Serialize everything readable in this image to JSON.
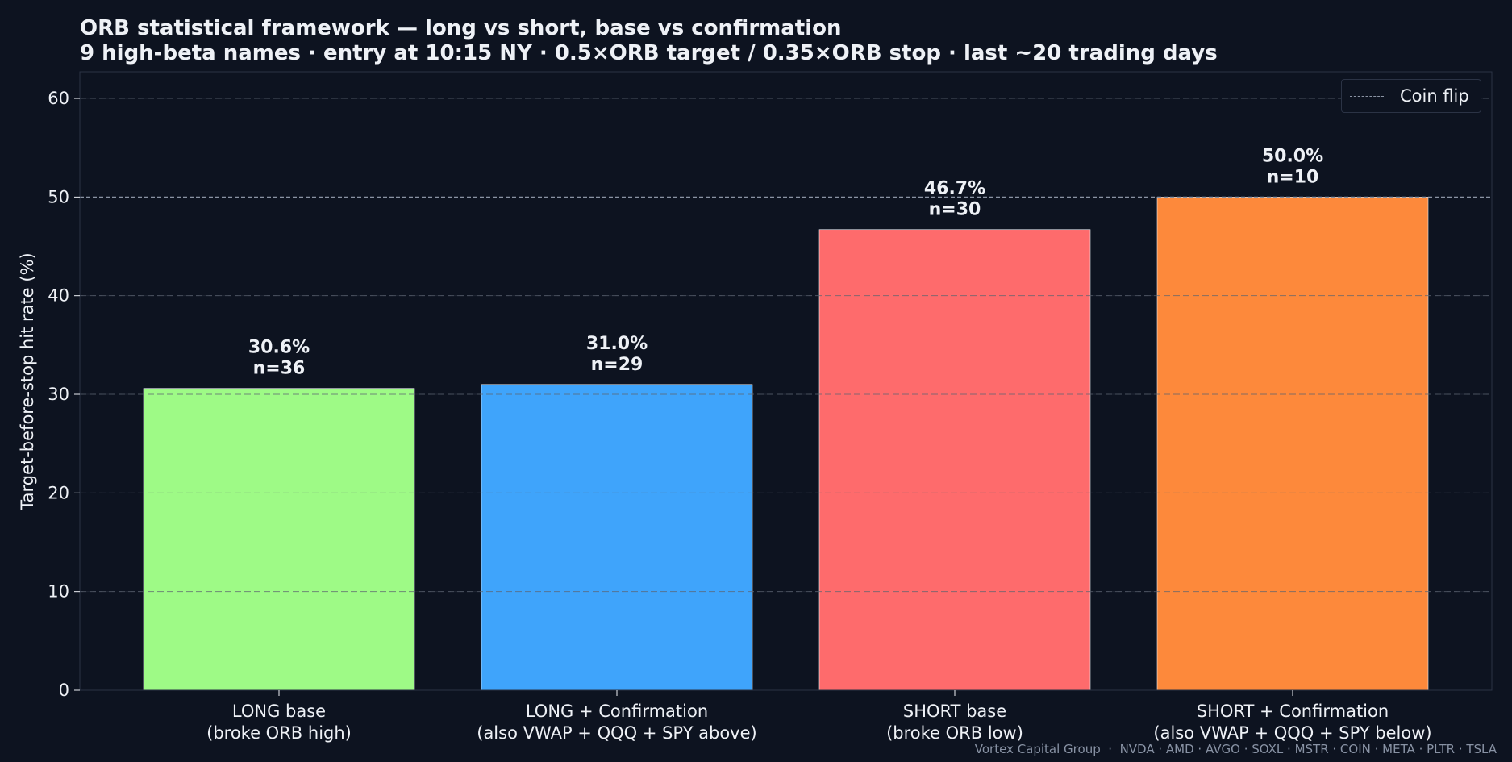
{
  "title": "ORB statistical framework — long vs short, base vs confirmation",
  "subtitle": "9 high-beta names · entry at 10:15 NY · 0.5×ORB target / 0.35×ORB stop · last ~20 trading days",
  "footer": "Vortex Capital Group  ·  NVDA · AMD · AVGO · SOXL · MSTR · COIN · META · PLTR · TSLA",
  "legend": {
    "label": "Coin flip",
    "color": "#8a93a3"
  },
  "colors": {
    "background": "#0d1320",
    "text": "#eef1f6",
    "grid": "#5c6370",
    "reference_line": "#8a93a3"
  },
  "chart_data": {
    "type": "bar",
    "title": "ORB statistical framework — long vs short, base vs confirmation",
    "subtitle": "9 high-beta names · entry at 10:15 NY · 0.5×ORB target / 0.35×ORB stop · last ~20 trading days",
    "xlabel": "",
    "ylabel": "Target-before-stop hit rate (%)",
    "ylim": [
      0,
      62.7
    ],
    "yticks": [
      "0",
      "10",
      "20",
      "30",
      "40",
      "50",
      "60"
    ],
    "grid": true,
    "legend_position": "top-right",
    "reference_line": {
      "name": "Coin flip",
      "value": 50
    },
    "categories": [
      [
        "LONG base",
        "(broke ORB high)"
      ],
      [
        "LONG + Confirmation",
        "(also VWAP + QQQ + SPY above)"
      ],
      [
        "SHORT base",
        "(broke ORB low)"
      ],
      [
        "SHORT + Confirmation",
        "(also VWAP + QQQ + SPY below)"
      ]
    ],
    "values": [
      30.6,
      31.0,
      46.7,
      50.0
    ],
    "value_labels": [
      "30.6%",
      "31.0%",
      "46.7%",
      "50.0%"
    ],
    "counts": [
      "n=36",
      "n=29",
      "n=30",
      "n=10"
    ],
    "colors": [
      "#9efa86",
      "#3fa4fb",
      "#fe6b6c",
      "#fd893b"
    ]
  }
}
